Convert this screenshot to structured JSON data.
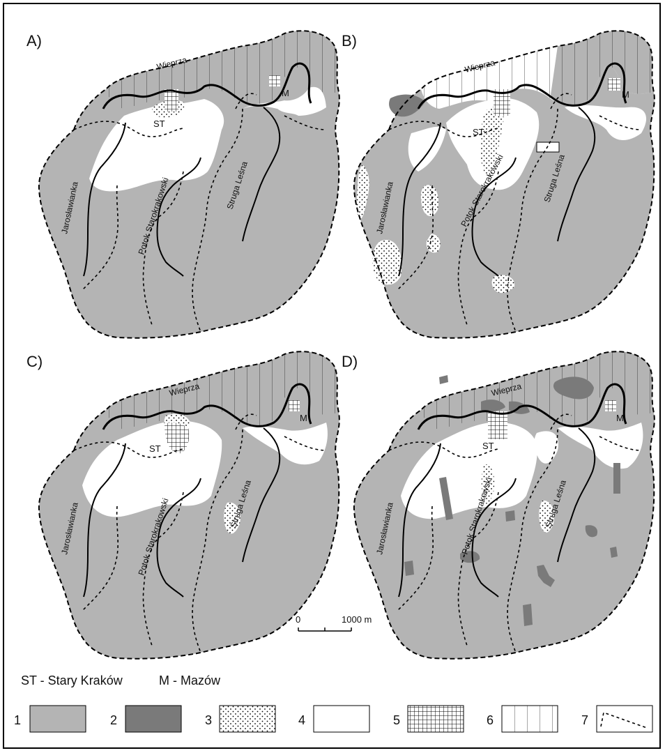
{
  "panels": [
    {
      "label": "A)"
    },
    {
      "label": "B)"
    },
    {
      "label": "C)"
    },
    {
      "label": "D)"
    }
  ],
  "rivers": {
    "wieprza": "Wieprza",
    "jaroslawianka": "Jarosławianka",
    "potok": "Potok Starokrakowski",
    "struga": "Struga Leśna"
  },
  "towns": {
    "st": "ST",
    "m": "M"
  },
  "scale": {
    "zero": "0",
    "length": "1000 m"
  },
  "abbreviations": {
    "st": "ST - Stary Kraków",
    "m": "M - Mazów"
  },
  "legend": [
    {
      "num": "1",
      "pattern": "gray-fill"
    },
    {
      "num": "2",
      "pattern": "dark-gray-fill"
    },
    {
      "num": "3",
      "pattern": "dots"
    },
    {
      "num": "4",
      "pattern": "white"
    },
    {
      "num": "5",
      "pattern": "grid"
    },
    {
      "num": "6",
      "pattern": "vertical-lines"
    },
    {
      "num": "7",
      "pattern": "dashed-line"
    }
  ],
  "colors": {
    "gray": "#b4b4b4",
    "dark_gray": "#7a7a7a",
    "white": "#ffffff",
    "line": "#000000"
  }
}
